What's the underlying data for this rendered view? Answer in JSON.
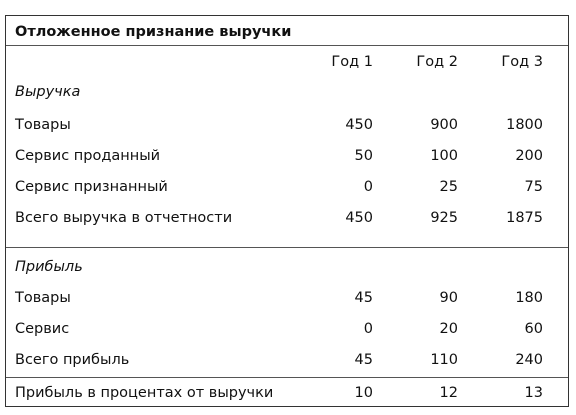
{
  "title": "Отложенное признание выручки",
  "columns": [
    "Год 1",
    "Год 2",
    "Год 3"
  ],
  "revenue": {
    "section_label": "Выручка",
    "rows": [
      {
        "label": "Товары",
        "values": [
          "450",
          "900",
          "1800"
        ]
      },
      {
        "label": "Сервис проданный",
        "values": [
          "50",
          "100",
          "200"
        ]
      },
      {
        "label": "Сервис признанный",
        "values": [
          "0",
          "25",
          "75"
        ]
      },
      {
        "label": "Всего выручка в отчетности",
        "values": [
          "450",
          "925",
          "1875"
        ]
      }
    ]
  },
  "profit": {
    "section_label": "Прибыль",
    "rows": [
      {
        "label": "Товары",
        "values": [
          "45",
          "90",
          "180"
        ]
      },
      {
        "label": "Сервис",
        "values": [
          "0",
          "20",
          "60"
        ]
      },
      {
        "label": "Всего прибыль",
        "values": [
          "45",
          "110",
          "240"
        ]
      }
    ]
  },
  "margin": {
    "label": "Прибыль в процентах от выручки",
    "values": [
      "10",
      "12",
      "13"
    ]
  }
}
